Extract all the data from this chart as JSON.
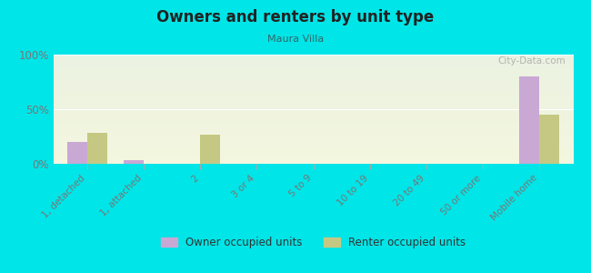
{
  "title": "Owners and renters by unit type",
  "subtitle": "Maura Villa",
  "categories": [
    "1, detached",
    "1, attached",
    "2",
    "3 or 4",
    "5 to 9",
    "10 to 19",
    "20 to 49",
    "50 or more",
    "Mobile home"
  ],
  "owner_values": [
    20,
    3,
    0,
    0,
    0,
    0,
    0,
    0,
    80
  ],
  "renter_values": [
    28,
    0,
    27,
    0,
    0,
    0,
    0,
    0,
    45
  ],
  "owner_color": "#c9a8d4",
  "renter_color": "#c5c882",
  "bg_color": "#00e5e8",
  "ylabel_ticks": [
    "0%",
    "50%",
    "100%"
  ],
  "ytick_vals": [
    0,
    50,
    100
  ],
  "ylim": [
    0,
    100
  ],
  "bar_width": 0.35,
  "watermark": "City-Data.com",
  "legend_owner": "Owner occupied units",
  "legend_renter": "Renter occupied units",
  "title_color": "#222222",
  "subtitle_color": "#336666",
  "tick_color": "#777777"
}
